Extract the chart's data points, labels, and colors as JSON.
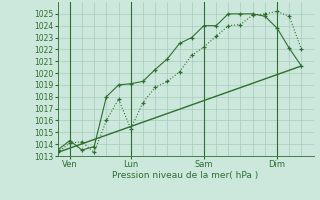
{
  "background_color": "#cce8dc",
  "grid_color": "#a8ccbc",
  "line_color": "#2d6e2d",
  "text_color": "#2d6e2d",
  "xlabel": "Pression niveau de la mer( hPa )",
  "ylim": [
    1013,
    1026
  ],
  "xlim": [
    0,
    10.5
  ],
  "yticks": [
    1013,
    1014,
    1015,
    1016,
    1017,
    1018,
    1019,
    1020,
    1021,
    1022,
    1023,
    1024,
    1025
  ],
  "xtick_labels": [
    "Ven",
    "Lun",
    "Sam",
    "Dim"
  ],
  "xtick_positions": [
    0.5,
    3.0,
    6.0,
    9.0
  ],
  "vlines_x": [
    0.5,
    3.0,
    6.0,
    9.0
  ],
  "series1_x": [
    0.0,
    0.5,
    1.0,
    1.5,
    2.0,
    2.5,
    3.0,
    3.5,
    4.0,
    4.5,
    5.0,
    5.5,
    6.0,
    6.5,
    7.0,
    7.5,
    8.0,
    8.5,
    9.0,
    9.5,
    10.0
  ],
  "series1_y": [
    1013.3,
    1014.1,
    1014.2,
    1013.3,
    1016.0,
    1017.8,
    1015.3,
    1017.5,
    1018.8,
    1019.3,
    1020.1,
    1021.5,
    1022.2,
    1023.1,
    1024.0,
    1024.1,
    1024.9,
    1025.0,
    1025.2,
    1024.8,
    1022.0
  ],
  "series2_x": [
    0.0,
    0.5,
    1.0,
    1.5,
    2.0,
    2.5,
    3.0,
    3.5,
    4.0,
    4.5,
    5.0,
    5.5,
    6.0,
    6.5,
    7.0,
    7.5,
    8.0,
    8.5,
    9.0,
    9.5,
    10.0
  ],
  "series2_y": [
    1013.5,
    1014.3,
    1013.5,
    1013.8,
    1018.0,
    1019.0,
    1019.1,
    1019.3,
    1020.3,
    1021.2,
    1022.5,
    1023.0,
    1024.0,
    1024.0,
    1025.0,
    1025.0,
    1025.0,
    1024.8,
    1023.8,
    1022.1,
    1020.6
  ],
  "series3_x": [
    0.0,
    10.0
  ],
  "series3_y": [
    1013.3,
    1020.6
  ],
  "figsize": [
    3.2,
    2.0
  ],
  "dpi": 100
}
